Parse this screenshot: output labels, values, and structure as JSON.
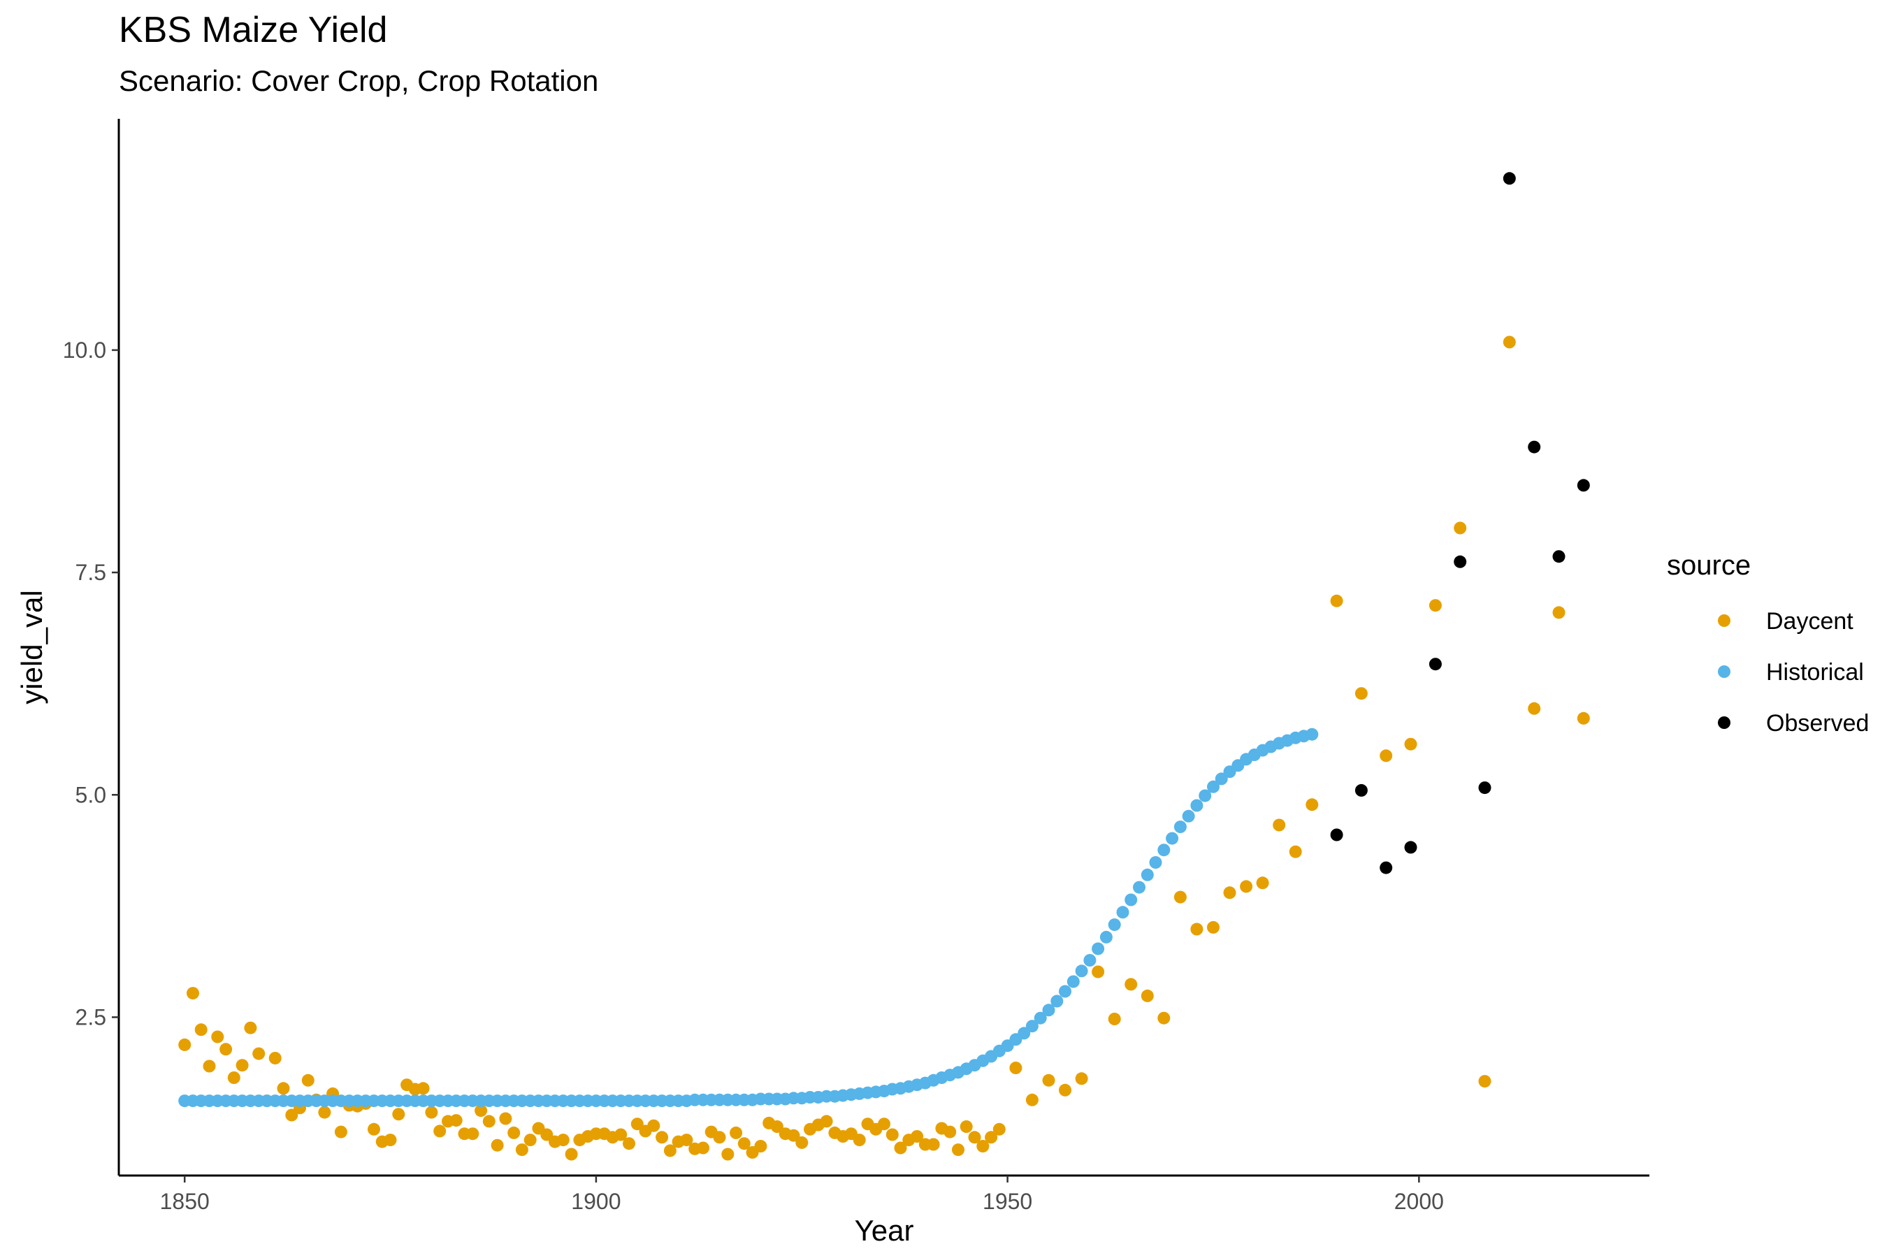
{
  "chart_data": {
    "type": "scatter",
    "title": "KBS Maize Yield",
    "subtitle": "Scenario: Cover Crop, Crop Rotation",
    "xlabel": "Year",
    "ylabel": "yield_val",
    "xlim": [
      1842,
      2028
    ],
    "ylim": [
      0.72,
      12.6
    ],
    "xticks": [
      1850,
      1900,
      1950,
      2000
    ],
    "xtick_labels": [
      "1850",
      "1900",
      "1950",
      "2000"
    ],
    "yticks": [
      2.5,
      5.0,
      7.5,
      10.0
    ],
    "ytick_labels": [
      "2.5",
      "5.0",
      "7.5",
      "10.0"
    ],
    "grid": false,
    "legend": {
      "title": "source",
      "placement": "right",
      "entries": [
        {
          "label": "Daycent",
          "color": "#E69F00"
        },
        {
          "label": "Historical",
          "color": "#56B4E9"
        },
        {
          "label": "Observed",
          "color": "#000000"
        }
      ]
    },
    "series": [
      {
        "name": "Daycent",
        "color": "#E69F00",
        "points": [
          [
            1850,
            2.19
          ],
          [
            1851,
            2.77
          ],
          [
            1852,
            2.36
          ],
          [
            1853,
            1.95
          ],
          [
            1854,
            2.28
          ],
          [
            1855,
            2.14
          ],
          [
            1856,
            1.82
          ],
          [
            1857,
            1.96
          ],
          [
            1858,
            2.38
          ],
          [
            1859,
            2.09
          ],
          [
            1860,
            1.56
          ],
          [
            1861,
            2.04
          ],
          [
            1862,
            1.7
          ],
          [
            1863,
            1.4
          ],
          [
            1864,
            1.48
          ],
          [
            1865,
            1.79
          ],
          [
            1866,
            1.57
          ],
          [
            1867,
            1.43
          ],
          [
            1868,
            1.64
          ],
          [
            1869,
            1.21
          ],
          [
            1870,
            1.51
          ],
          [
            1871,
            1.5
          ],
          [
            1872,
            1.53
          ],
          [
            1873,
            1.24
          ],
          [
            1874,
            1.1
          ],
          [
            1875,
            1.12
          ],
          [
            1876,
            1.41
          ],
          [
            1877,
            1.74
          ],
          [
            1878,
            1.69
          ],
          [
            1879,
            1.7
          ],
          [
            1880,
            1.43
          ],
          [
            1881,
            1.22
          ],
          [
            1882,
            1.33
          ],
          [
            1883,
            1.34
          ],
          [
            1884,
            1.19
          ],
          [
            1885,
            1.19
          ],
          [
            1886,
            1.45
          ],
          [
            1887,
            1.33
          ],
          [
            1888,
            1.06
          ],
          [
            1889,
            1.36
          ],
          [
            1890,
            1.2
          ],
          [
            1891,
            1.01
          ],
          [
            1892,
            1.12
          ],
          [
            1893,
            1.25
          ],
          [
            1894,
            1.18
          ],
          [
            1895,
            1.1
          ],
          [
            1896,
            1.12
          ],
          [
            1897,
            0.96
          ],
          [
            1898,
            1.12
          ],
          [
            1899,
            1.16
          ],
          [
            1900,
            1.19
          ],
          [
            1901,
            1.19
          ],
          [
            1902,
            1.15
          ],
          [
            1903,
            1.18
          ],
          [
            1904,
            1.08
          ],
          [
            1905,
            1.3
          ],
          [
            1906,
            1.22
          ],
          [
            1907,
            1.28
          ],
          [
            1908,
            1.15
          ],
          [
            1909,
            1.0
          ],
          [
            1910,
            1.1
          ],
          [
            1911,
            1.12
          ],
          [
            1912,
            1.02
          ],
          [
            1913,
            1.03
          ],
          [
            1914,
            1.21
          ],
          [
            1915,
            1.15
          ],
          [
            1916,
            0.96
          ],
          [
            1917,
            1.2
          ],
          [
            1918,
            1.08
          ],
          [
            1919,
            0.98
          ],
          [
            1920,
            1.05
          ],
          [
            1921,
            1.31
          ],
          [
            1922,
            1.27
          ],
          [
            1923,
            1.19
          ],
          [
            1924,
            1.17
          ],
          [
            1925,
            1.09
          ],
          [
            1926,
            1.24
          ],
          [
            1927,
            1.29
          ],
          [
            1928,
            1.33
          ],
          [
            1929,
            1.2
          ],
          [
            1930,
            1.16
          ],
          [
            1931,
            1.19
          ],
          [
            1932,
            1.12
          ],
          [
            1933,
            1.3
          ],
          [
            1934,
            1.24
          ],
          [
            1935,
            1.3
          ],
          [
            1936,
            1.18
          ],
          [
            1937,
            1.03
          ],
          [
            1938,
            1.12
          ],
          [
            1939,
            1.16
          ],
          [
            1940,
            1.07
          ],
          [
            1941,
            1.07
          ],
          [
            1942,
            1.25
          ],
          [
            1943,
            1.21
          ],
          [
            1944,
            1.01
          ],
          [
            1945,
            1.27
          ],
          [
            1946,
            1.15
          ],
          [
            1947,
            1.05
          ],
          [
            1948,
            1.15
          ],
          [
            1949,
            1.24
          ],
          [
            1951,
            1.93
          ],
          [
            1953,
            1.57
          ],
          [
            1955,
            1.79
          ],
          [
            1957,
            1.68
          ],
          [
            1959,
            1.81
          ],
          [
            1961,
            3.01
          ],
          [
            1963,
            2.48
          ],
          [
            1965,
            2.87
          ],
          [
            1967,
            2.74
          ],
          [
            1969,
            2.49
          ],
          [
            1971,
            3.85
          ],
          [
            1973,
            3.49
          ],
          [
            1975,
            3.51
          ],
          [
            1977,
            3.9
          ],
          [
            1979,
            3.97
          ],
          [
            1981,
            4.01
          ],
          [
            1983,
            4.66
          ],
          [
            1985,
            4.36
          ],
          [
            1987,
            4.89
          ],
          [
            1990,
            7.18
          ],
          [
            1993,
            6.14
          ],
          [
            1996,
            5.44
          ],
          [
            1999,
            5.57
          ],
          [
            2002,
            7.13
          ],
          [
            2005,
            8.0
          ],
          [
            2008,
            1.78
          ],
          [
            2011,
            10.09
          ],
          [
            2014,
            5.97
          ],
          [
            2017,
            7.05
          ],
          [
            2020,
            5.86
          ]
        ]
      },
      {
        "name": "Historical",
        "color": "#56B4E9",
        "points": [
          [
            1850,
            1.56
          ],
          [
            1851,
            1.56
          ],
          [
            1852,
            1.56
          ],
          [
            1853,
            1.56
          ],
          [
            1854,
            1.56
          ],
          [
            1855,
            1.56
          ],
          [
            1856,
            1.56
          ],
          [
            1857,
            1.56
          ],
          [
            1858,
            1.56
          ],
          [
            1859,
            1.56
          ],
          [
            1860,
            1.56
          ],
          [
            1861,
            1.56
          ],
          [
            1862,
            1.56
          ],
          [
            1863,
            1.56
          ],
          [
            1864,
            1.56
          ],
          [
            1865,
            1.56
          ],
          [
            1866,
            1.56
          ],
          [
            1867,
            1.56
          ],
          [
            1868,
            1.56
          ],
          [
            1869,
            1.56
          ],
          [
            1870,
            1.56
          ],
          [
            1871,
            1.56
          ],
          [
            1872,
            1.56
          ],
          [
            1873,
            1.56
          ],
          [
            1874,
            1.56
          ],
          [
            1875,
            1.56
          ],
          [
            1876,
            1.56
          ],
          [
            1877,
            1.56
          ],
          [
            1878,
            1.56
          ],
          [
            1879,
            1.56
          ],
          [
            1880,
            1.56
          ],
          [
            1881,
            1.56
          ],
          [
            1882,
            1.56
          ],
          [
            1883,
            1.56
          ],
          [
            1884,
            1.56
          ],
          [
            1885,
            1.56
          ],
          [
            1886,
            1.56
          ],
          [
            1887,
            1.56
          ],
          [
            1888,
            1.56
          ],
          [
            1889,
            1.56
          ],
          [
            1890,
            1.56
          ],
          [
            1891,
            1.56
          ],
          [
            1892,
            1.56
          ],
          [
            1893,
            1.56
          ],
          [
            1894,
            1.56
          ],
          [
            1895,
            1.56
          ],
          [
            1896,
            1.56
          ],
          [
            1897,
            1.56
          ],
          [
            1898,
            1.56
          ],
          [
            1899,
            1.56
          ],
          [
            1900,
            1.56
          ],
          [
            1901,
            1.56
          ],
          [
            1902,
            1.56
          ],
          [
            1903,
            1.56
          ],
          [
            1904,
            1.56
          ],
          [
            1905,
            1.56
          ],
          [
            1906,
            1.56
          ],
          [
            1907,
            1.56
          ],
          [
            1908,
            1.56
          ],
          [
            1909,
            1.56
          ],
          [
            1910,
            1.56
          ],
          [
            1911,
            1.56
          ],
          [
            1912,
            1.57
          ],
          [
            1913,
            1.57
          ],
          [
            1914,
            1.57
          ],
          [
            1915,
            1.57
          ],
          [
            1916,
            1.57
          ],
          [
            1917,
            1.57
          ],
          [
            1918,
            1.57
          ],
          [
            1919,
            1.57
          ],
          [
            1920,
            1.58
          ],
          [
            1921,
            1.58
          ],
          [
            1922,
            1.58
          ],
          [
            1923,
            1.58
          ],
          [
            1924,
            1.59
          ],
          [
            1925,
            1.59
          ],
          [
            1926,
            1.6
          ],
          [
            1927,
            1.6
          ],
          [
            1928,
            1.61
          ],
          [
            1929,
            1.61
          ],
          [
            1930,
            1.62
          ],
          [
            1931,
            1.63
          ],
          [
            1932,
            1.64
          ],
          [
            1933,
            1.65
          ],
          [
            1934,
            1.66
          ],
          [
            1935,
            1.67
          ],
          [
            1936,
            1.69
          ],
          [
            1937,
            1.7
          ],
          [
            1938,
            1.72
          ],
          [
            1939,
            1.74
          ],
          [
            1940,
            1.76
          ],
          [
            1941,
            1.79
          ],
          [
            1942,
            1.82
          ],
          [
            1943,
            1.85
          ],
          [
            1944,
            1.88
          ],
          [
            1945,
            1.92
          ],
          [
            1946,
            1.96
          ],
          [
            1947,
            2.01
          ],
          [
            1948,
            2.06
          ],
          [
            1949,
            2.12
          ],
          [
            1950,
            2.18
          ],
          [
            1951,
            2.25
          ],
          [
            1952,
            2.32
          ],
          [
            1953,
            2.4
          ],
          [
            1954,
            2.49
          ],
          [
            1955,
            2.58
          ],
          [
            1956,
            2.68
          ],
          [
            1957,
            2.79
          ],
          [
            1958,
            2.9
          ],
          [
            1959,
            3.02
          ],
          [
            1960,
            3.14
          ],
          [
            1961,
            3.27
          ],
          [
            1962,
            3.4
          ],
          [
            1963,
            3.54
          ],
          [
            1964,
            3.68
          ],
          [
            1965,
            3.82
          ],
          [
            1966,
            3.96
          ],
          [
            1967,
            4.1
          ],
          [
            1968,
            4.24
          ],
          [
            1969,
            4.38
          ],
          [
            1970,
            4.51
          ],
          [
            1971,
            4.64
          ],
          [
            1972,
            4.76
          ],
          [
            1973,
            4.88
          ],
          [
            1974,
            4.99
          ],
          [
            1975,
            5.09
          ],
          [
            1976,
            5.18
          ],
          [
            1977,
            5.26
          ],
          [
            1978,
            5.33
          ],
          [
            1979,
            5.4
          ],
          [
            1980,
            5.45
          ],
          [
            1981,
            5.5
          ],
          [
            1982,
            5.54
          ],
          [
            1983,
            5.58
          ],
          [
            1984,
            5.61
          ],
          [
            1985,
            5.64
          ],
          [
            1986,
            5.66
          ],
          [
            1987,
            5.68
          ]
        ]
      },
      {
        "name": "Observed",
        "color": "#000000",
        "points": [
          [
            1990,
            4.55
          ],
          [
            1993,
            5.05
          ],
          [
            1996,
            4.18
          ],
          [
            1999,
            4.41
          ],
          [
            2002,
            6.47
          ],
          [
            2005,
            7.62
          ],
          [
            2008,
            5.08
          ],
          [
            2011,
            11.93
          ],
          [
            2014,
            8.91
          ],
          [
            2017,
            7.68
          ],
          [
            2020,
            8.48
          ]
        ]
      }
    ]
  }
}
